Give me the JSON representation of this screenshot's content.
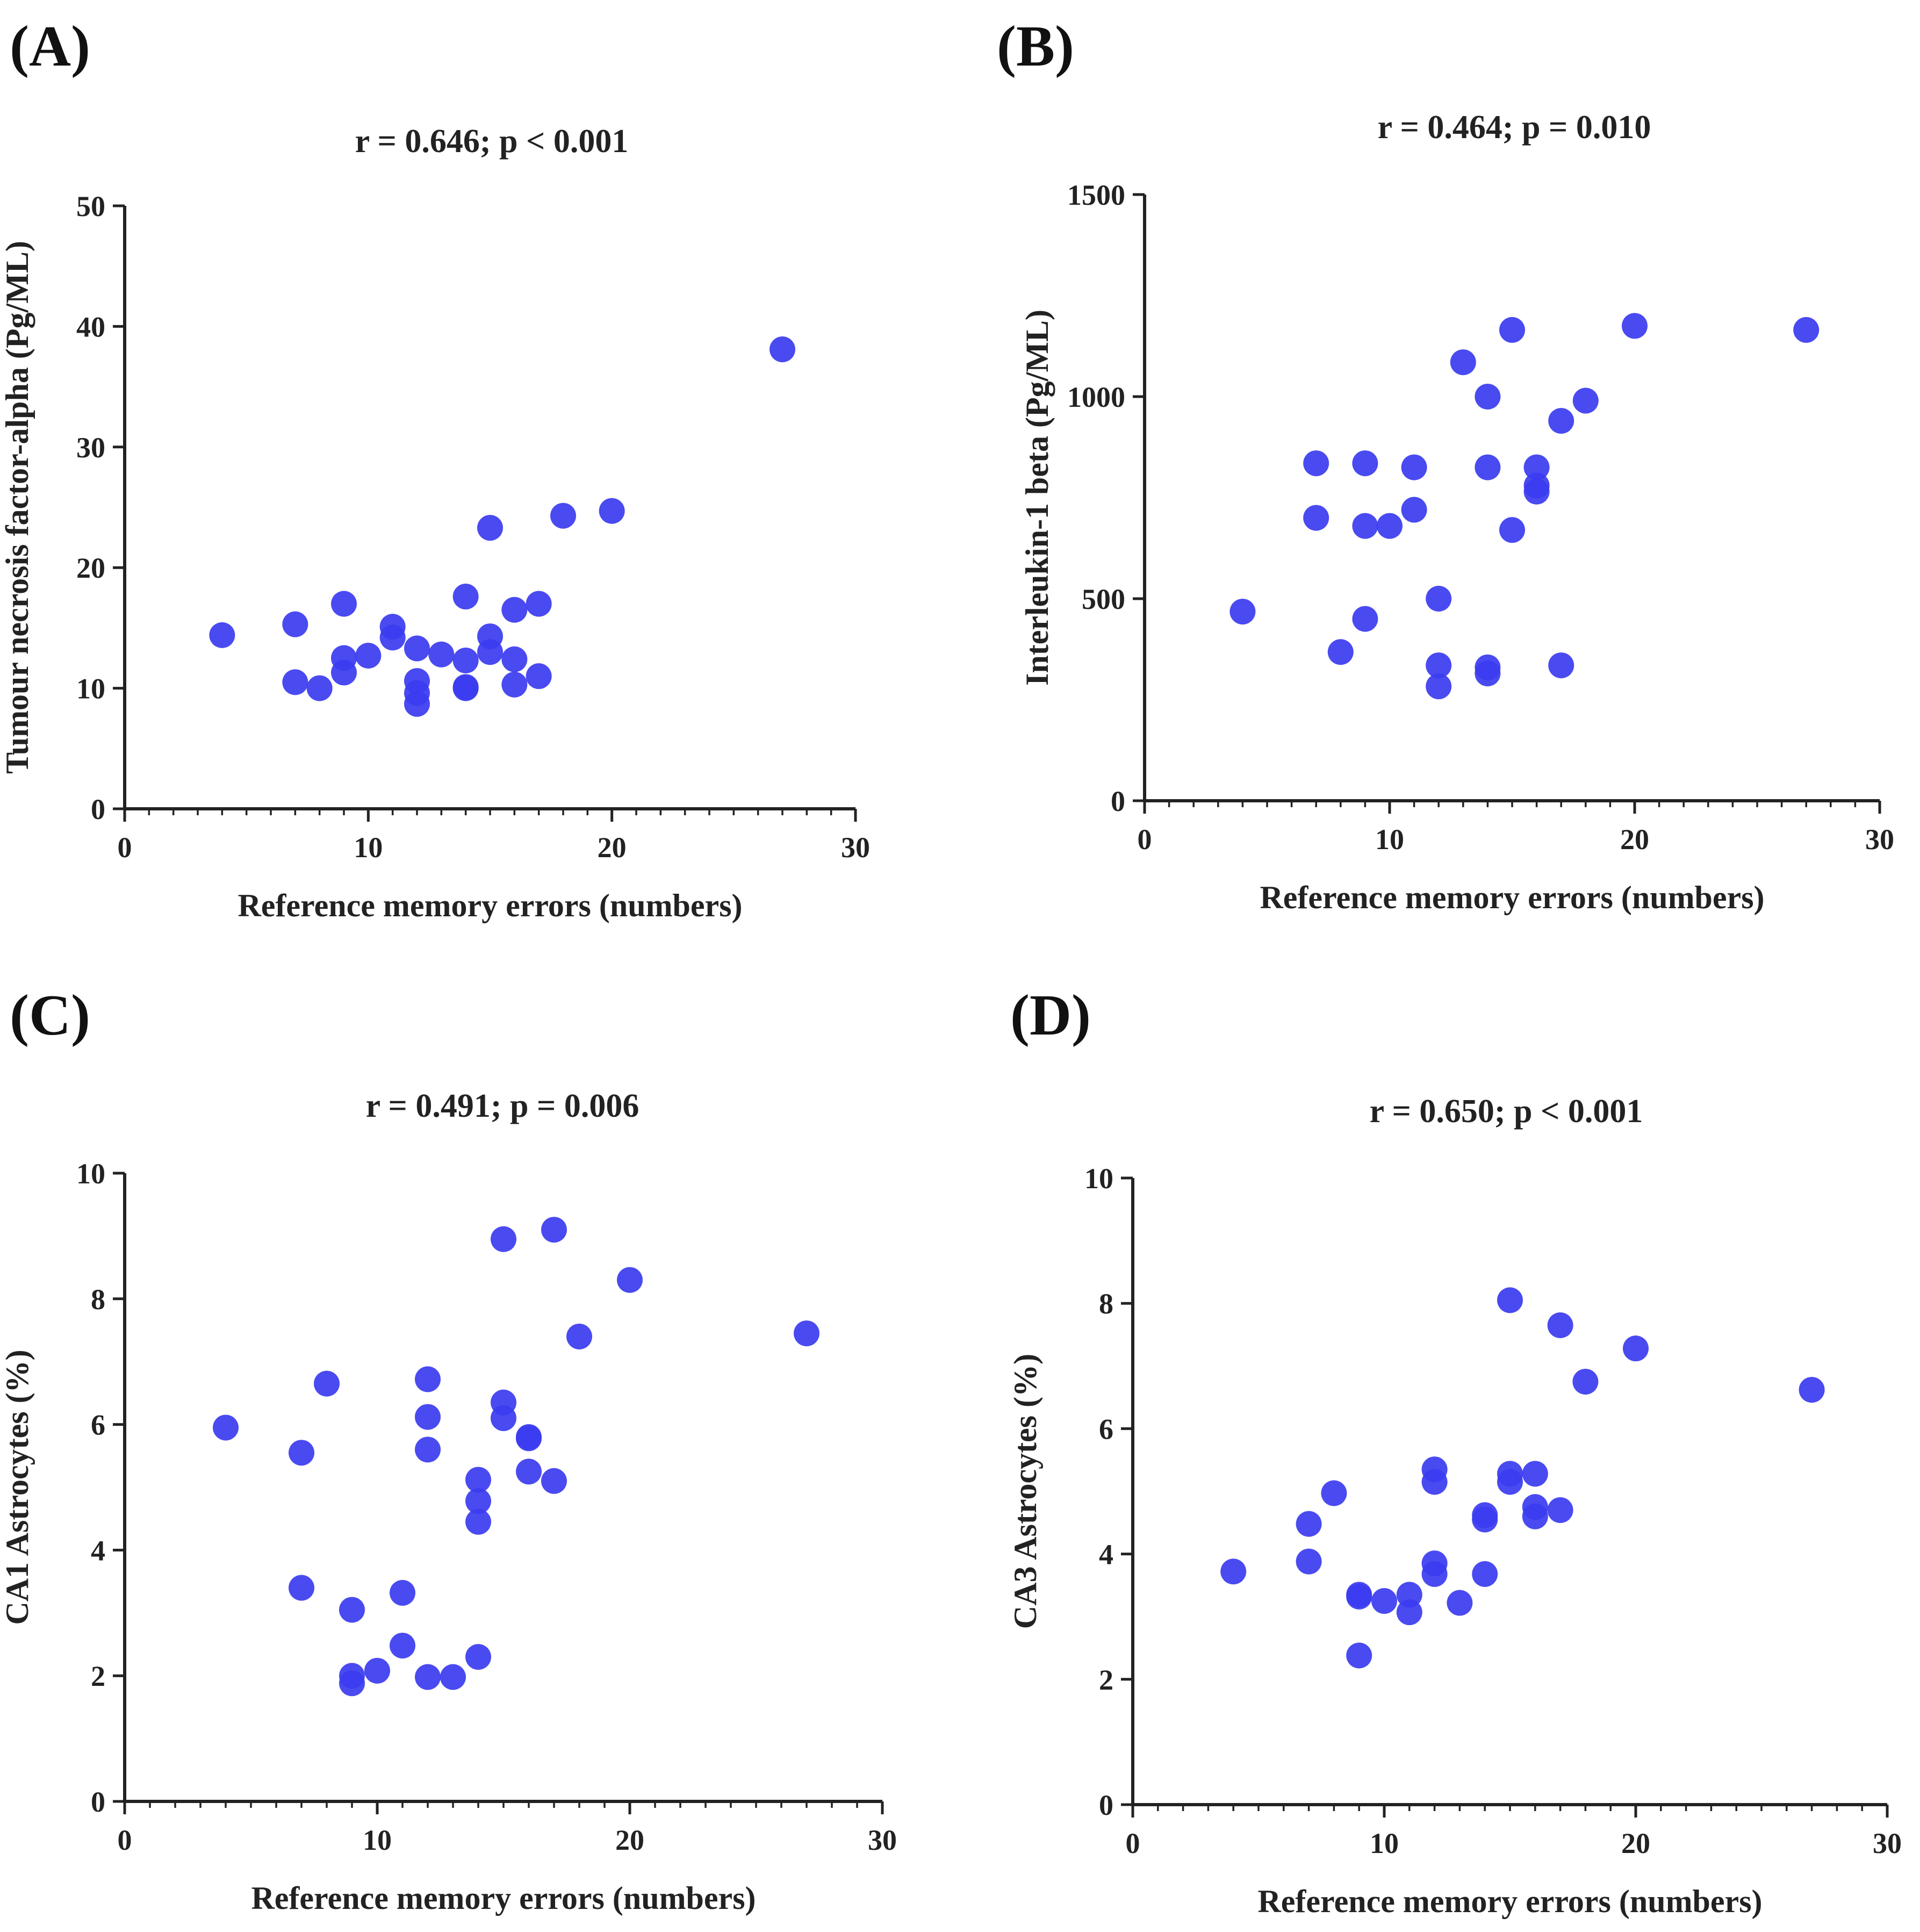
{
  "figure": {
    "panels": [
      {
        "label": "(A)",
        "stat": "r = 0.646; p < 0.001"
      },
      {
        "label": "(B)",
        "stat": "r = 0.464; p = 0.010"
      },
      {
        "label": "(C)",
        "stat": "r = 0.491; p = 0.006"
      },
      {
        "label": "(D)",
        "stat": "r = 0.650; p < 0.001"
      }
    ]
  },
  "colors": {
    "point": "#3b3bf0",
    "axis": "#222222",
    "text": "#222222"
  },
  "chart_data": [
    {
      "type": "scatter",
      "title": "r = 0.646; p < 0.001",
      "xlabel": "Reference memory errors (numbers)",
      "ylabel": "Tumour necrosis factor-alpha (Pg/ML)",
      "xlim": [
        0,
        30
      ],
      "ylim": [
        0,
        50
      ],
      "xticks": [
        "0",
        "10",
        "20",
        "30"
      ],
      "yticks": [
        "0",
        "10",
        "20",
        "30",
        "40",
        "50"
      ],
      "grid": false,
      "points": [
        [
          4,
          14.4
        ],
        [
          7,
          15.3
        ],
        [
          7,
          10.5
        ],
        [
          8,
          10.0
        ],
        [
          9,
          17.0
        ],
        [
          9,
          12.5
        ],
        [
          9,
          11.3
        ],
        [
          10,
          12.7
        ],
        [
          11,
          15.1
        ],
        [
          11,
          14.2
        ],
        [
          12,
          13.3
        ],
        [
          12,
          10.6
        ],
        [
          12,
          9.6
        ],
        [
          12,
          8.7
        ],
        [
          13,
          12.8
        ],
        [
          14,
          17.6
        ],
        [
          14,
          12.3
        ],
        [
          14,
          10.1
        ],
        [
          14,
          10.0
        ],
        [
          15,
          23.3
        ],
        [
          15,
          14.3
        ],
        [
          15,
          13.0
        ],
        [
          16,
          16.5
        ],
        [
          16,
          12.4
        ],
        [
          16,
          10.3
        ],
        [
          17,
          17.0
        ],
        [
          17,
          11.0
        ],
        [
          18,
          24.3
        ],
        [
          20,
          24.7
        ],
        [
          27,
          38.1
        ]
      ]
    },
    {
      "type": "scatter",
      "title": "r = 0.464; p = 0.010",
      "xlabel": "Reference memory errors (numbers)",
      "ylabel": "Interleukin-1 beta (Pg/ML)",
      "xlim": [
        0,
        30
      ],
      "ylim": [
        0,
        1500
      ],
      "xticks": [
        "0",
        "10",
        "20",
        "30"
      ],
      "yticks": [
        "0",
        "500",
        "1000",
        "1500"
      ],
      "grid": false,
      "points": [
        [
          4,
          468
        ],
        [
          7,
          835
        ],
        [
          7,
          700
        ],
        [
          8,
          368
        ],
        [
          9,
          835
        ],
        [
          9,
          680
        ],
        [
          9,
          450
        ],
        [
          10,
          680
        ],
        [
          11,
          825
        ],
        [
          11,
          720
        ],
        [
          12,
          500
        ],
        [
          12,
          335
        ],
        [
          12,
          283
        ],
        [
          13,
          1085
        ],
        [
          14,
          1000
        ],
        [
          14,
          825
        ],
        [
          14,
          330
        ],
        [
          14,
          315
        ],
        [
          15,
          1165
        ],
        [
          15,
          670
        ],
        [
          16,
          825
        ],
        [
          16,
          780
        ],
        [
          16,
          765
        ],
        [
          17,
          940
        ],
        [
          17,
          335
        ],
        [
          18,
          990
        ],
        [
          20,
          1175
        ],
        [
          27,
          1165
        ]
      ]
    },
    {
      "type": "scatter",
      "title": "r = 0.491; p = 0.006",
      "xlabel": "Reference memory errors (numbers)",
      "ylabel": "CA1 Astrocytes (%)",
      "xlim": [
        0,
        30
      ],
      "ylim": [
        0,
        10
      ],
      "xticks": [
        "0",
        "10",
        "20",
        "30"
      ],
      "yticks": [
        "0",
        "2",
        "4",
        "6",
        "8",
        "10"
      ],
      "grid": false,
      "points": [
        [
          4,
          5.95
        ],
        [
          7,
          5.55
        ],
        [
          7,
          3.4
        ],
        [
          8,
          6.65
        ],
        [
          9,
          3.05
        ],
        [
          9,
          2.0
        ],
        [
          9,
          1.88
        ],
        [
          10,
          2.08
        ],
        [
          11,
          3.32
        ],
        [
          11,
          2.48
        ],
        [
          12,
          6.72
        ],
        [
          12,
          6.12
        ],
        [
          12,
          5.6
        ],
        [
          12,
          1.98
        ],
        [
          13,
          1.98
        ],
        [
          14,
          5.12
        ],
        [
          14,
          4.78
        ],
        [
          14,
          4.45
        ],
        [
          14,
          2.3
        ],
        [
          15,
          8.95
        ],
        [
          15,
          6.35
        ],
        [
          15,
          6.1
        ],
        [
          16,
          5.8
        ],
        [
          16,
          5.78
        ],
        [
          16,
          5.25
        ],
        [
          17,
          9.1
        ],
        [
          17,
          5.1
        ],
        [
          18,
          7.4
        ],
        [
          20,
          8.3
        ],
        [
          27,
          7.45
        ]
      ]
    },
    {
      "type": "scatter",
      "title": "r = 0.650; p < 0.001",
      "xlabel": "Reference memory errors (numbers)",
      "ylabel": "CA3 Astrocytes (%)",
      "xlim": [
        0,
        30
      ],
      "ylim": [
        0,
        10
      ],
      "xticks": [
        "0",
        "10",
        "20",
        "30"
      ],
      "yticks": [
        "0",
        "2",
        "4",
        "6",
        "8",
        "10"
      ],
      "grid": false,
      "points": [
        [
          4,
          3.72
        ],
        [
          7,
          4.48
        ],
        [
          7,
          3.88
        ],
        [
          8,
          4.97
        ],
        [
          9,
          3.35
        ],
        [
          9,
          3.32
        ],
        [
          9,
          2.38
        ],
        [
          10,
          3.25
        ],
        [
          11,
          3.35
        ],
        [
          11,
          3.07
        ],
        [
          12,
          5.35
        ],
        [
          12,
          5.15
        ],
        [
          12,
          3.85
        ],
        [
          12,
          3.68
        ],
        [
          13,
          3.22
        ],
        [
          14,
          4.62
        ],
        [
          14,
          4.55
        ],
        [
          14,
          3.68
        ],
        [
          15,
          8.05
        ],
        [
          15,
          5.28
        ],
        [
          15,
          5.15
        ],
        [
          16,
          5.28
        ],
        [
          16,
          4.75
        ],
        [
          16,
          4.6
        ],
        [
          17,
          7.65
        ],
        [
          17,
          4.7
        ],
        [
          18,
          6.75
        ],
        [
          20,
          7.28
        ],
        [
          27,
          6.62
        ]
      ]
    }
  ]
}
